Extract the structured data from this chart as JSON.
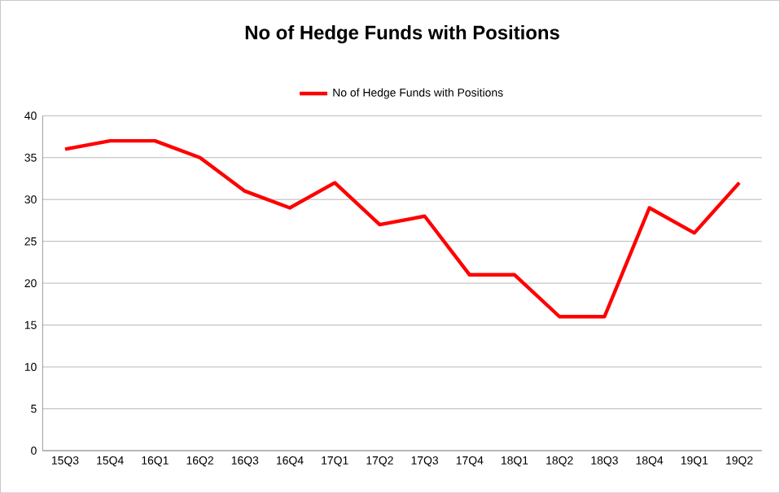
{
  "chart_data": {
    "type": "line",
    "title": "No of Hedge Funds with Positions",
    "categories": [
      "15Q3",
      "15Q4",
      "16Q1",
      "16Q2",
      "16Q3",
      "16Q4",
      "17Q1",
      "17Q2",
      "17Q3",
      "17Q4",
      "18Q1",
      "18Q2",
      "18Q3",
      "18Q4",
      "19Q1",
      "19Q2"
    ],
    "series": [
      {
        "name": "No of Hedge Funds with Positions",
        "color": "#ff0000",
        "values": [
          36,
          37,
          37,
          35,
          31,
          29,
          32,
          27,
          28,
          21,
          21,
          16,
          16,
          29,
          26,
          32
        ]
      }
    ],
    "ylim": [
      0,
      40
    ],
    "yticks": [
      0,
      5,
      10,
      15,
      20,
      25,
      30,
      35,
      40
    ],
    "grid": "y",
    "legend": "top",
    "marker": "none",
    "line_style": "solid"
  }
}
